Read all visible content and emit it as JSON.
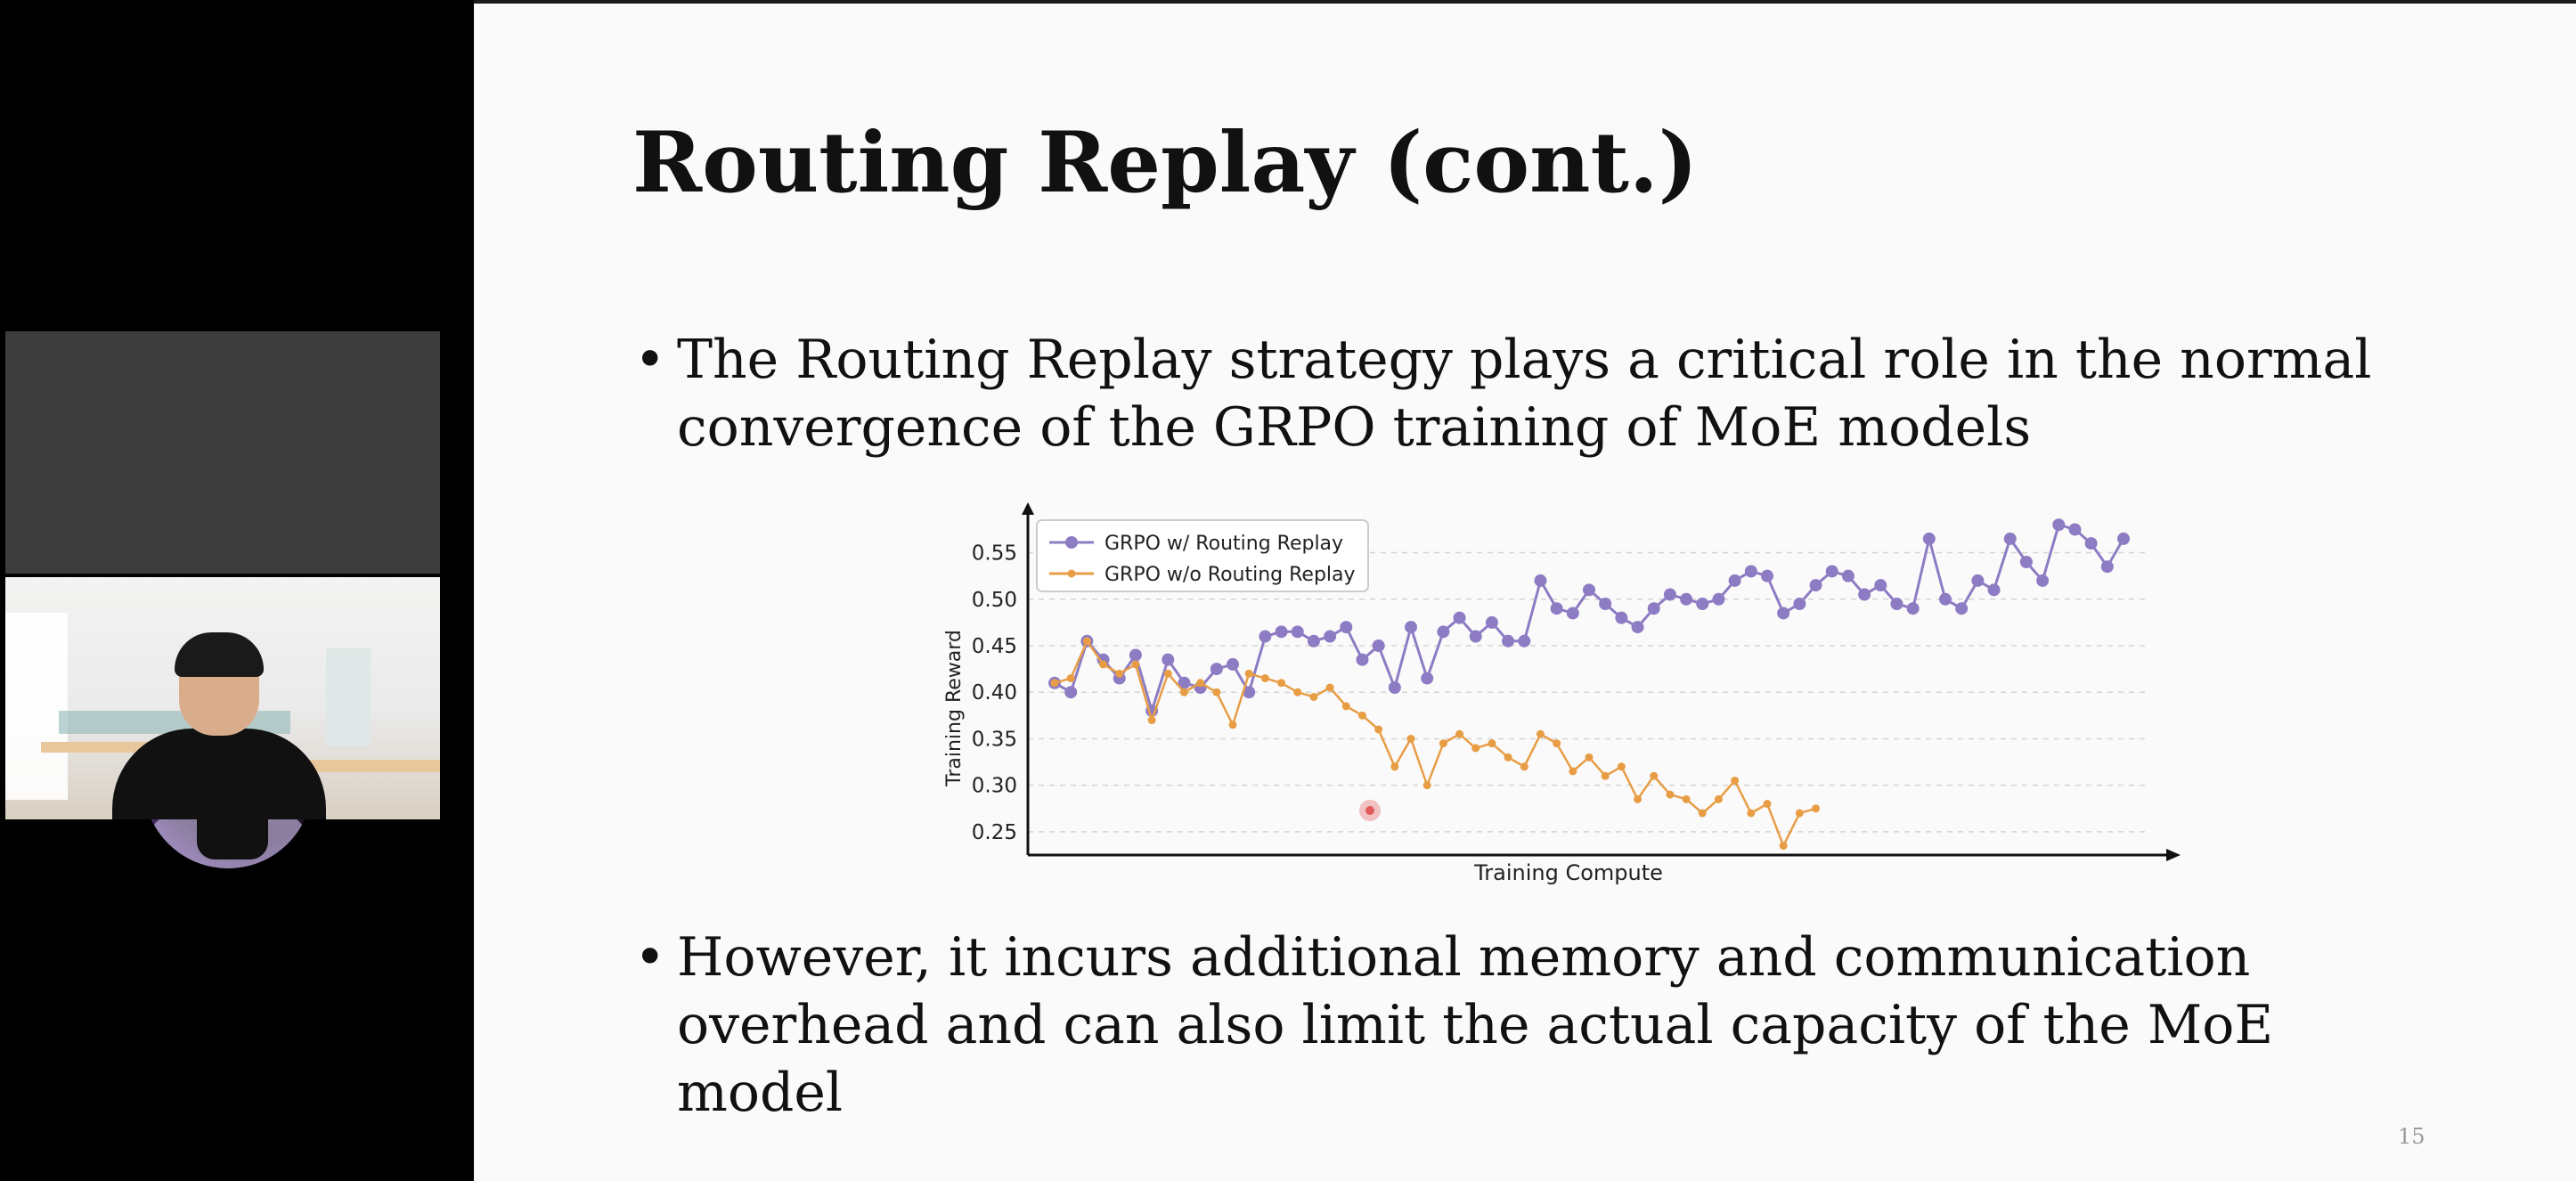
{
  "slide": {
    "title": "Routing Replay (cont.)",
    "bullets": [
      "The Routing Replay strategy plays a critical role in the normal convergence of the GRPO training of MoE models",
      "However, it incurs additional memory and communication overhead and can also limit the actual capacity of the MoE model"
    ],
    "page_number": "15"
  },
  "chart_data": {
    "type": "line",
    "xlabel": "Training Compute",
    "ylabel": "Training Reward",
    "ylim": [
      0.225,
      0.585
    ],
    "yticks": [
      "0.25",
      "0.30",
      "0.35",
      "0.40",
      "0.45",
      "0.50",
      "0.55"
    ],
    "x_ticks_shown": false,
    "grid": "horizontal dashed",
    "legend_position": "top-left",
    "series": [
      {
        "name": "GRPO w/ Routing Replay",
        "color": "#8d7cc3",
        "values": [
          0.41,
          0.4,
          0.455,
          0.435,
          0.415,
          0.44,
          0.38,
          0.435,
          0.41,
          0.405,
          0.425,
          0.43,
          0.4,
          0.46,
          0.465,
          0.465,
          0.455,
          0.46,
          0.47,
          0.435,
          0.45,
          0.405,
          0.47,
          0.415,
          0.465,
          0.48,
          0.46,
          0.475,
          0.455,
          0.455,
          0.52,
          0.49,
          0.485,
          0.51,
          0.495,
          0.48,
          0.47,
          0.49,
          0.505,
          0.5,
          0.495,
          0.5,
          0.52,
          0.53,
          0.525,
          0.485,
          0.495,
          0.515,
          0.53,
          0.525,
          0.505,
          0.515,
          0.495,
          0.49,
          0.565,
          0.5,
          0.49,
          0.52,
          0.51,
          0.565,
          0.54,
          0.52,
          0.58,
          0.575,
          0.56,
          0.535,
          0.565
        ]
      },
      {
        "name": "GRPO w/o Routing Replay",
        "color": "#e89d45",
        "values": [
          0.41,
          0.415,
          0.455,
          0.43,
          0.42,
          0.43,
          0.37,
          0.42,
          0.4,
          0.41,
          0.4,
          0.365,
          0.42,
          0.415,
          0.41,
          0.4,
          0.395,
          0.405,
          0.385,
          0.375,
          0.36,
          0.32,
          0.35,
          0.3,
          0.345,
          0.355,
          0.34,
          0.345,
          0.33,
          0.32,
          0.355,
          0.345,
          0.315,
          0.33,
          0.31,
          0.32,
          0.285,
          0.31,
          0.29,
          0.285,
          0.27,
          0.285,
          0.305,
          0.27,
          0.28,
          0.235,
          0.27,
          0.275
        ]
      }
    ]
  },
  "video_tiles": [
    {
      "type": "avatar-circle"
    },
    {
      "type": "webcam"
    }
  ],
  "cursor": {
    "color": "#e05a5a"
  }
}
